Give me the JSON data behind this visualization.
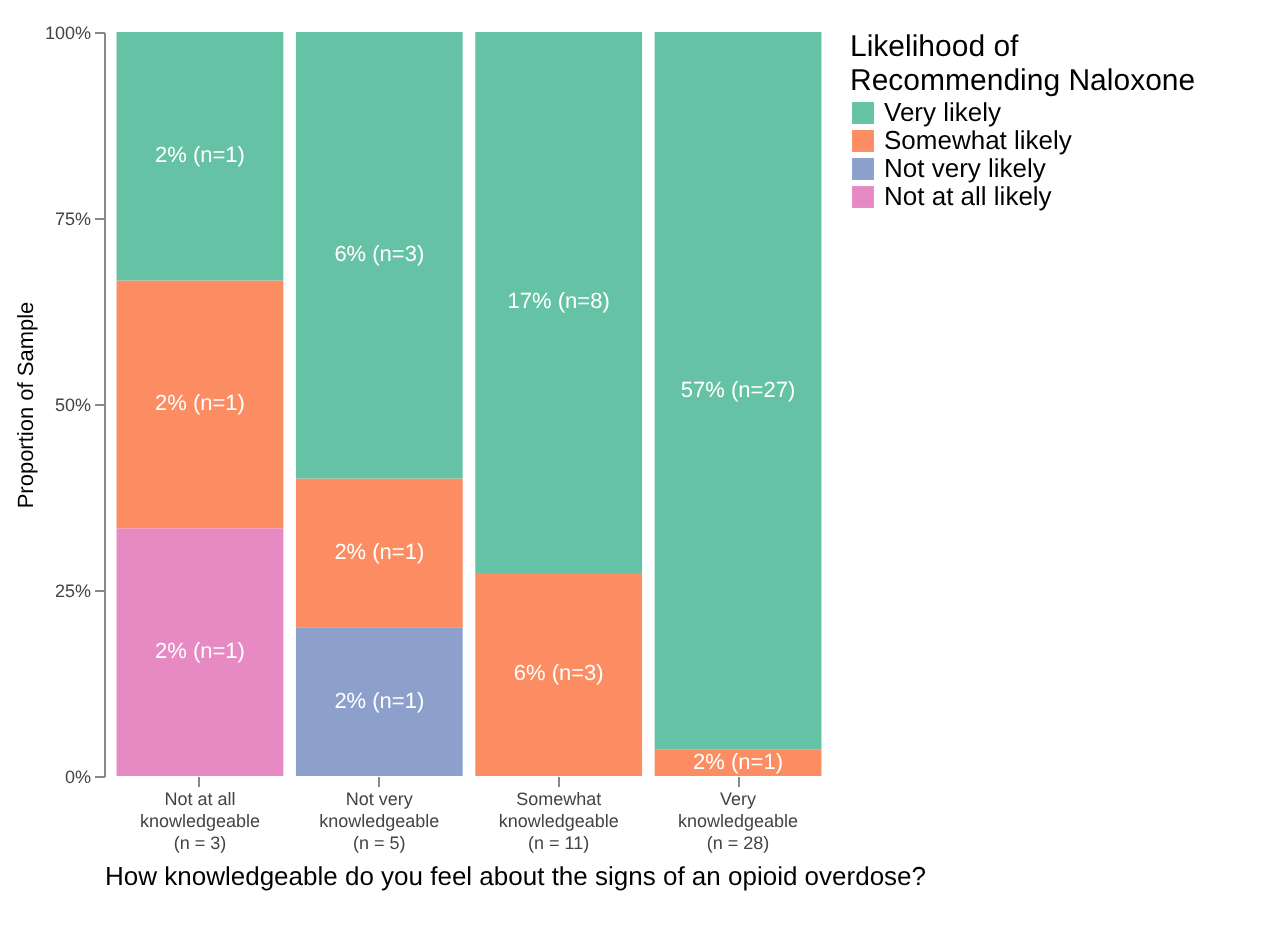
{
  "chart_data": {
    "type": "bar",
    "stacked": true,
    "xlabel": "How knowledgeable do you feel about the signs of an opioid overdose?",
    "ylabel": "Proportion of Sample",
    "legend_title": "Likelihood of Recommending Naloxone",
    "legend": "right",
    "categories": [
      "Not at all\nknowledgeable\n(n = 3)",
      "Not very\nknowledgeable\n(n = 5)",
      "Somewhat\nknowledgeable\n(n = 11)",
      "Very\nknowledgeable\n(n = 28)"
    ],
    "ylim": [
      0,
      100
    ],
    "yticks": [
      {
        "value": 0,
        "label": "0%"
      },
      {
        "value": 25,
        "label": "25%"
      },
      {
        "value": 50,
        "label": "50%"
      },
      {
        "value": 75,
        "label": "75%"
      },
      {
        "value": 100,
        "label": "100%"
      }
    ],
    "series": [
      {
        "name": "Not at all likely",
        "color": "#e78ac3",
        "values": [
          33.3,
          null,
          null,
          null
        ]
      },
      {
        "name": "Not very likely",
        "color": "#8da0cb",
        "values": [
          null,
          20,
          null,
          null
        ]
      },
      {
        "name": "Somewhat likely",
        "color": "#fc8d62",
        "values": [
          33.3,
          20,
          27.3,
          3.6
        ]
      },
      {
        "name": "Very likely",
        "color": "#66c2a5",
        "values": [
          33.4,
          60,
          72.7,
          96.4
        ]
      }
    ],
    "annotations": [
      "2% (n=1)",
      "2% (n=1)",
      "2% (n=1)",
      "2% (n=1)",
      "2% (n=1)",
      "6% (n=3)",
      "6% (n=3)",
      "17% (n=8)",
      "2% (n=1)",
      "57% (n=27)"
    ]
  }
}
